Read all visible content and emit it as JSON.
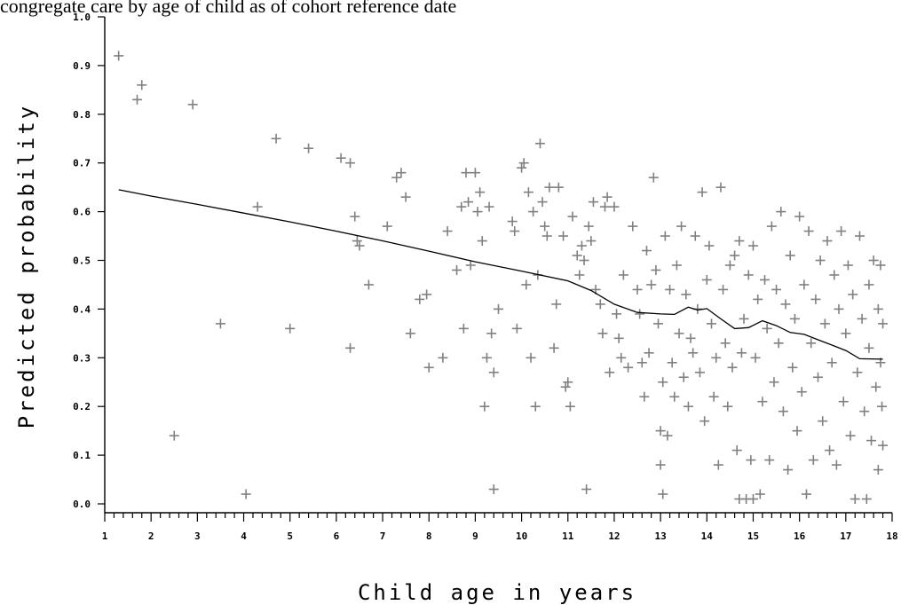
{
  "chart_data": {
    "type": "scatter",
    "title": "congregate care by age of child as of cohort reference date",
    "xlabel": "Child age in years",
    "ylabel": "Predicted probability",
    "xlim": [
      1,
      18
    ],
    "ylim": [
      0.0,
      1.0
    ],
    "xticks": [
      "1",
      "2",
      "3",
      "4",
      "5",
      "6",
      "7",
      "8",
      "9",
      "10",
      "11",
      "12",
      "13",
      "14",
      "15",
      "16",
      "17",
      "18"
    ],
    "yticks": [
      "0.0",
      "0.1",
      "0.2",
      "0.3",
      "0.4",
      "0.5",
      "0.6",
      "0.7",
      "0.8",
      "0.9",
      "1.0"
    ],
    "marker_color": "#808080",
    "line_color": "#000000",
    "points": [
      [
        1.3,
        0.92
      ],
      [
        1.7,
        0.83
      ],
      [
        1.8,
        0.86
      ],
      [
        2.5,
        0.14
      ],
      [
        2.9,
        0.82
      ],
      [
        3.5,
        0.37
      ],
      [
        4.05,
        0.02
      ],
      [
        4.3,
        0.61
      ],
      [
        4.7,
        0.75
      ],
      [
        5.0,
        0.36
      ],
      [
        5.4,
        0.73
      ],
      [
        6.1,
        0.71
      ],
      [
        6.3,
        0.7
      ],
      [
        6.3,
        0.32
      ],
      [
        6.4,
        0.59
      ],
      [
        6.45,
        0.54
      ],
      [
        6.5,
        0.53
      ],
      [
        6.7,
        0.45
      ],
      [
        7.1,
        0.57
      ],
      [
        7.3,
        0.67
      ],
      [
        7.4,
        0.68
      ],
      [
        7.5,
        0.63
      ],
      [
        7.6,
        0.35
      ],
      [
        7.8,
        0.42
      ],
      [
        7.95,
        0.43
      ],
      [
        8.0,
        0.28
      ],
      [
        8.3,
        0.3
      ],
      [
        8.4,
        0.56
      ],
      [
        8.6,
        0.48
      ],
      [
        8.7,
        0.61
      ],
      [
        8.75,
        0.36
      ],
      [
        8.8,
        0.68
      ],
      [
        8.85,
        0.62
      ],
      [
        8.9,
        0.49
      ],
      [
        9.0,
        0.68
      ],
      [
        9.05,
        0.6
      ],
      [
        9.1,
        0.64
      ],
      [
        9.15,
        0.54
      ],
      [
        9.2,
        0.2
      ],
      [
        9.25,
        0.3
      ],
      [
        9.3,
        0.61
      ],
      [
        9.35,
        0.35
      ],
      [
        9.4,
        0.27
      ],
      [
        9.4,
        0.03
      ],
      [
        9.5,
        0.4
      ],
      [
        9.8,
        0.58
      ],
      [
        9.85,
        0.56
      ],
      [
        9.9,
        0.36
      ],
      [
        10.0,
        0.69
      ],
      [
        10.05,
        0.7
      ],
      [
        10.1,
        0.45
      ],
      [
        10.15,
        0.64
      ],
      [
        10.2,
        0.3
      ],
      [
        10.25,
        0.6
      ],
      [
        10.3,
        0.2
      ],
      [
        10.35,
        0.47
      ],
      [
        10.4,
        0.74
      ],
      [
        10.45,
        0.62
      ],
      [
        10.5,
        0.57
      ],
      [
        10.55,
        0.55
      ],
      [
        10.6,
        0.65
      ],
      [
        10.7,
        0.32
      ],
      [
        10.75,
        0.41
      ],
      [
        10.8,
        0.65
      ],
      [
        10.9,
        0.55
      ],
      [
        10.95,
        0.24
      ],
      [
        11.0,
        0.25
      ],
      [
        11.05,
        0.2
      ],
      [
        11.1,
        0.59
      ],
      [
        11.2,
        0.51
      ],
      [
        11.25,
        0.47
      ],
      [
        11.3,
        0.53
      ],
      [
        11.35,
        0.5
      ],
      [
        11.4,
        0.03
      ],
      [
        11.45,
        0.57
      ],
      [
        11.5,
        0.54
      ],
      [
        11.55,
        0.62
      ],
      [
        11.6,
        0.44
      ],
      [
        11.7,
        0.41
      ],
      [
        11.75,
        0.35
      ],
      [
        11.8,
        0.61
      ],
      [
        11.85,
        0.63
      ],
      [
        11.9,
        0.27
      ],
      [
        12.0,
        0.61
      ],
      [
        12.05,
        0.39
      ],
      [
        12.1,
        0.34
      ],
      [
        12.15,
        0.3
      ],
      [
        12.2,
        0.47
      ],
      [
        12.3,
        0.28
      ],
      [
        12.4,
        0.57
      ],
      [
        12.5,
        0.44
      ],
      [
        12.55,
        0.39
      ],
      [
        12.6,
        0.29
      ],
      [
        12.65,
        0.22
      ],
      [
        12.7,
        0.52
      ],
      [
        12.75,
        0.31
      ],
      [
        12.8,
        0.45
      ],
      [
        12.85,
        0.67
      ],
      [
        12.9,
        0.48
      ],
      [
        12.95,
        0.37
      ],
      [
        13.0,
        0.15
      ],
      [
        13.0,
        0.08
      ],
      [
        13.05,
        0.25
      ],
      [
        13.05,
        0.02
      ],
      [
        13.1,
        0.55
      ],
      [
        13.15,
        0.14
      ],
      [
        13.2,
        0.44
      ],
      [
        13.25,
        0.29
      ],
      [
        13.3,
        0.22
      ],
      [
        13.35,
        0.49
      ],
      [
        13.4,
        0.35
      ],
      [
        13.45,
        0.57
      ],
      [
        13.5,
        0.26
      ],
      [
        13.55,
        0.43
      ],
      [
        13.6,
        0.2
      ],
      [
        13.65,
        0.34
      ],
      [
        13.7,
        0.31
      ],
      [
        13.75,
        0.55
      ],
      [
        13.8,
        0.4
      ],
      [
        13.85,
        0.27
      ],
      [
        13.9,
        0.64
      ],
      [
        13.95,
        0.17
      ],
      [
        14.0,
        0.46
      ],
      [
        14.05,
        0.53
      ],
      [
        14.1,
        0.37
      ],
      [
        14.15,
        0.22
      ],
      [
        14.2,
        0.3
      ],
      [
        14.25,
        0.08
      ],
      [
        14.3,
        0.65
      ],
      [
        14.35,
        0.44
      ],
      [
        14.4,
        0.33
      ],
      [
        14.45,
        0.2
      ],
      [
        14.5,
        0.49
      ],
      [
        14.55,
        0.28
      ],
      [
        14.6,
        0.51
      ],
      [
        14.65,
        0.11
      ],
      [
        14.7,
        0.54
      ],
      [
        14.7,
        0.01
      ],
      [
        14.75,
        0.31
      ],
      [
        14.8,
        0.38
      ],
      [
        14.85,
        0.01
      ],
      [
        14.9,
        0.47
      ],
      [
        14.95,
        0.09
      ],
      [
        15.0,
        0.53
      ],
      [
        15.0,
        0.01
      ],
      [
        15.05,
        0.3
      ],
      [
        15.1,
        0.42
      ],
      [
        15.15,
        0.02
      ],
      [
        15.2,
        0.21
      ],
      [
        15.25,
        0.46
      ],
      [
        15.3,
        0.36
      ],
      [
        15.35,
        0.09
      ],
      [
        15.4,
        0.57
      ],
      [
        15.45,
        0.25
      ],
      [
        15.5,
        0.44
      ],
      [
        15.55,
        0.33
      ],
      [
        15.6,
        0.6
      ],
      [
        15.65,
        0.19
      ],
      [
        15.7,
        0.41
      ],
      [
        15.75,
        0.07
      ],
      [
        15.8,
        0.51
      ],
      [
        15.85,
        0.28
      ],
      [
        15.9,
        0.38
      ],
      [
        15.95,
        0.15
      ],
      [
        16.0,
        0.59
      ],
      [
        16.05,
        0.23
      ],
      [
        16.1,
        0.45
      ],
      [
        16.15,
        0.02
      ],
      [
        16.2,
        0.56
      ],
      [
        16.25,
        0.33
      ],
      [
        16.3,
        0.09
      ],
      [
        16.35,
        0.42
      ],
      [
        16.4,
        0.26
      ],
      [
        16.45,
        0.5
      ],
      [
        16.5,
        0.17
      ],
      [
        16.55,
        0.37
      ],
      [
        16.6,
        0.54
      ],
      [
        16.65,
        0.11
      ],
      [
        16.7,
        0.29
      ],
      [
        16.75,
        0.47
      ],
      [
        16.8,
        0.08
      ],
      [
        16.85,
        0.4
      ],
      [
        16.9,
        0.56
      ],
      [
        16.95,
        0.21
      ],
      [
        17.0,
        0.35
      ],
      [
        17.05,
        0.49
      ],
      [
        17.1,
        0.14
      ],
      [
        17.15,
        0.43
      ],
      [
        17.2,
        0.01
      ],
      [
        17.25,
        0.27
      ],
      [
        17.3,
        0.55
      ],
      [
        17.35,
        0.38
      ],
      [
        17.4,
        0.19
      ],
      [
        17.45,
        0.01
      ],
      [
        17.5,
        0.45
      ],
      [
        17.5,
        0.32
      ],
      [
        17.55,
        0.13
      ],
      [
        17.6,
        0.5
      ],
      [
        17.65,
        0.24
      ],
      [
        17.7,
        0.07
      ],
      [
        17.7,
        0.4
      ],
      [
        17.75,
        0.49
      ],
      [
        17.75,
        0.29
      ],
      [
        17.78,
        0.2
      ],
      [
        17.8,
        0.12
      ],
      [
        17.8,
        0.37
      ]
    ],
    "trend_line": [
      [
        1.3,
        0.645
      ],
      [
        2.0,
        0.632
      ],
      [
        3.0,
        0.615
      ],
      [
        4.0,
        0.597
      ],
      [
        5.0,
        0.579
      ],
      [
        6.0,
        0.56
      ],
      [
        7.0,
        0.54
      ],
      [
        8.0,
        0.519
      ],
      [
        9.0,
        0.497
      ],
      [
        10.0,
        0.478
      ],
      [
        11.0,
        0.458
      ],
      [
        11.5,
        0.438
      ],
      [
        12.0,
        0.41
      ],
      [
        12.5,
        0.393
      ],
      [
        13.0,
        0.39
      ],
      [
        13.3,
        0.389
      ],
      [
        13.6,
        0.404
      ],
      [
        13.8,
        0.398
      ],
      [
        14.0,
        0.401
      ],
      [
        14.3,
        0.38
      ],
      [
        14.6,
        0.36
      ],
      [
        14.9,
        0.362
      ],
      [
        15.2,
        0.376
      ],
      [
        15.5,
        0.366
      ],
      [
        15.8,
        0.352
      ],
      [
        16.1,
        0.348
      ],
      [
        16.4,
        0.337
      ],
      [
        16.7,
        0.326
      ],
      [
        17.0,
        0.315
      ],
      [
        17.3,
        0.298
      ],
      [
        17.8,
        0.297
      ]
    ]
  }
}
